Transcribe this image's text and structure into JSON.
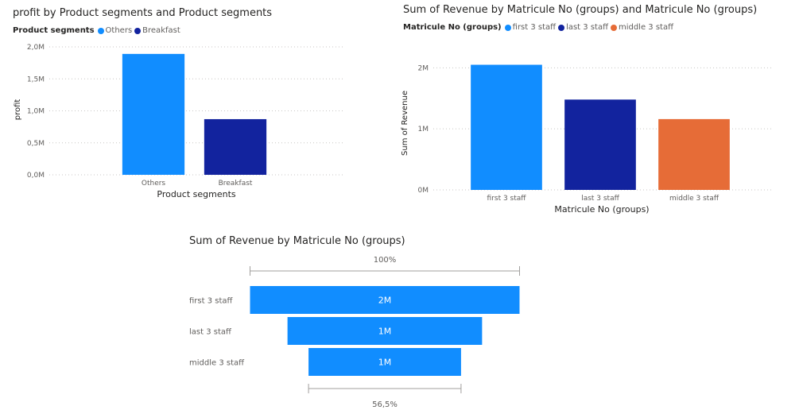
{
  "chart_data": [
    {
      "type": "bar",
      "title": "profit by Product segments and Product segments",
      "legend_title": "Product segments",
      "legend_placement": "top-left",
      "categories": [
        "Others",
        "Breakfast"
      ],
      "values": [
        1890000,
        870000
      ],
      "colors": [
        "#118dff",
        "#12239e"
      ],
      "xlabel": "Product segments",
      "ylabel": "profit",
      "ylim": [
        0,
        2000000
      ],
      "yticks": [
        0,
        500000,
        1000000,
        1500000,
        2000000
      ],
      "ytick_labels": [
        "0,0M",
        "0,5M",
        "1,0M",
        "1,5M",
        "2,0M"
      ],
      "grid": true
    },
    {
      "type": "bar",
      "title": "Sum of Revenue by Matricule No (groups) and Matricule No (groups)",
      "legend_title": "Matricule No (groups)",
      "legend_placement": "top-left",
      "categories": [
        "first 3 staff",
        "last 3 staff",
        "middle 3 staff"
      ],
      "values": [
        2050000,
        1480000,
        1160000
      ],
      "colors": [
        "#118dff",
        "#12239e",
        "#e66c37"
      ],
      "xlabel": "Matricule No (groups)",
      "ylabel": "Sum of Revenue",
      "ylim": [
        0,
        2200000
      ],
      "yticks": [
        0,
        1000000,
        2000000
      ],
      "ytick_labels": [
        "0M",
        "1M",
        "2M"
      ],
      "grid": true
    },
    {
      "type": "funnel",
      "title": "Sum of Revenue by Matricule No (groups)",
      "categories": [
        "first 3 staff",
        "last 3 staff",
        "middle 3 staff"
      ],
      "values": [
        2050000,
        1480000,
        1160000
      ],
      "data_labels": [
        "2M",
        "1M",
        "1M"
      ],
      "top_percent_label": "100%",
      "bottom_percent_label": "56,5%",
      "color": "#118dff"
    }
  ]
}
